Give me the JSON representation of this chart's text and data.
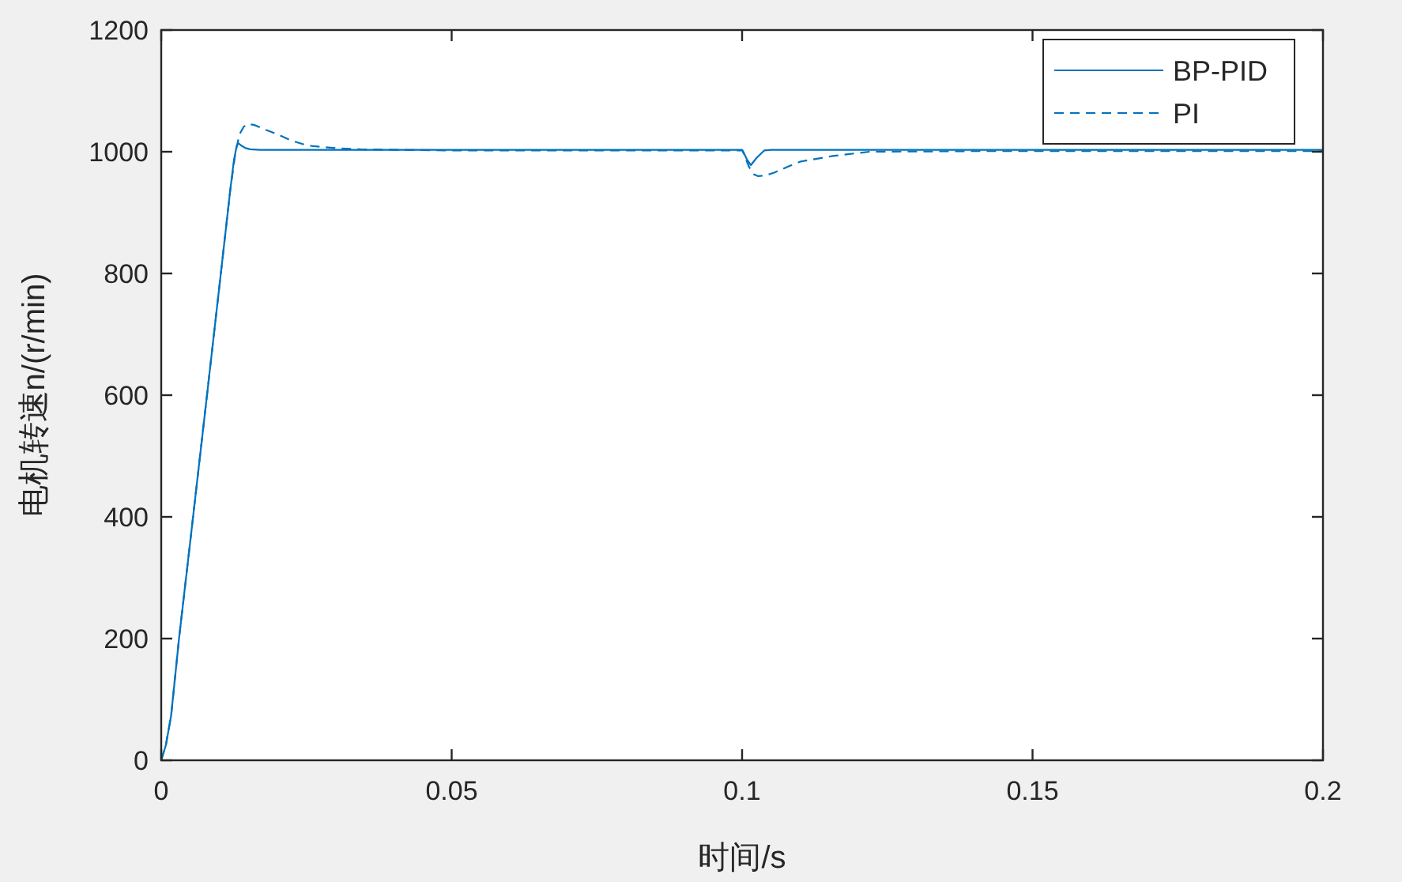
{
  "chart_data": {
    "type": "line",
    "xlabel": "时间/s",
    "ylabel": "电机转速n/(r/min)",
    "xlim": [
      0,
      0.2
    ],
    "xticks": [
      0,
      0.05,
      0.1,
      0.15,
      0.2
    ],
    "ylim": [
      0,
      1200
    ],
    "yticks": [
      0,
      200,
      400,
      600,
      800,
      1000,
      1200
    ],
    "legend": "top right",
    "series": [
      {
        "name": "BP-PID",
        "color": "#0072bd",
        "line_style": "solid",
        "x": [
          0,
          0.0008,
          0.0017,
          0.0031,
          0.005,
          0.008,
          0.0105,
          0.0119,
          0.0125,
          0.013,
          0.0133,
          0.0138,
          0.0145,
          0.0153,
          0.017,
          0.02,
          0.05,
          0.1,
          0.1001,
          0.1008,
          0.1015,
          0.1025,
          0.1038,
          0.105,
          0.15,
          0.2
        ],
        "values": [
          0,
          25,
          73,
          203,
          360,
          610,
          820,
          938,
          985,
          1010,
          1014,
          1010,
          1006,
          1004,
          1003,
          1003,
          1003,
          1003,
          1002,
          988,
          978,
          990,
          1002,
          1003,
          1003,
          1003
        ]
      },
      {
        "name": "PI",
        "color": "#0072bd",
        "line_style": "dashed",
        "x": [
          0,
          0.0008,
          0.0017,
          0.0031,
          0.005,
          0.008,
          0.0105,
          0.0119,
          0.0128,
          0.0135,
          0.0142,
          0.0149,
          0.016,
          0.018,
          0.0199,
          0.0225,
          0.0253,
          0.03,
          0.0343,
          0.05,
          0.1,
          0.1001,
          0.1012,
          0.102,
          0.1027,
          0.104,
          0.1056,
          0.108,
          0.1101,
          0.1156,
          0.1219,
          0.14,
          0.2
        ],
        "values": [
          0,
          25,
          73,
          203,
          360,
          610,
          820,
          938,
          1000,
          1029,
          1041,
          1046,
          1044,
          1036,
          1029,
          1018,
          1010,
          1006,
          1004,
          1002,
          1002,
          1001,
          975,
          963,
          960,
          961,
          966,
          976,
          984,
          993,
          1000,
          1001,
          1001
        ]
      }
    ]
  }
}
